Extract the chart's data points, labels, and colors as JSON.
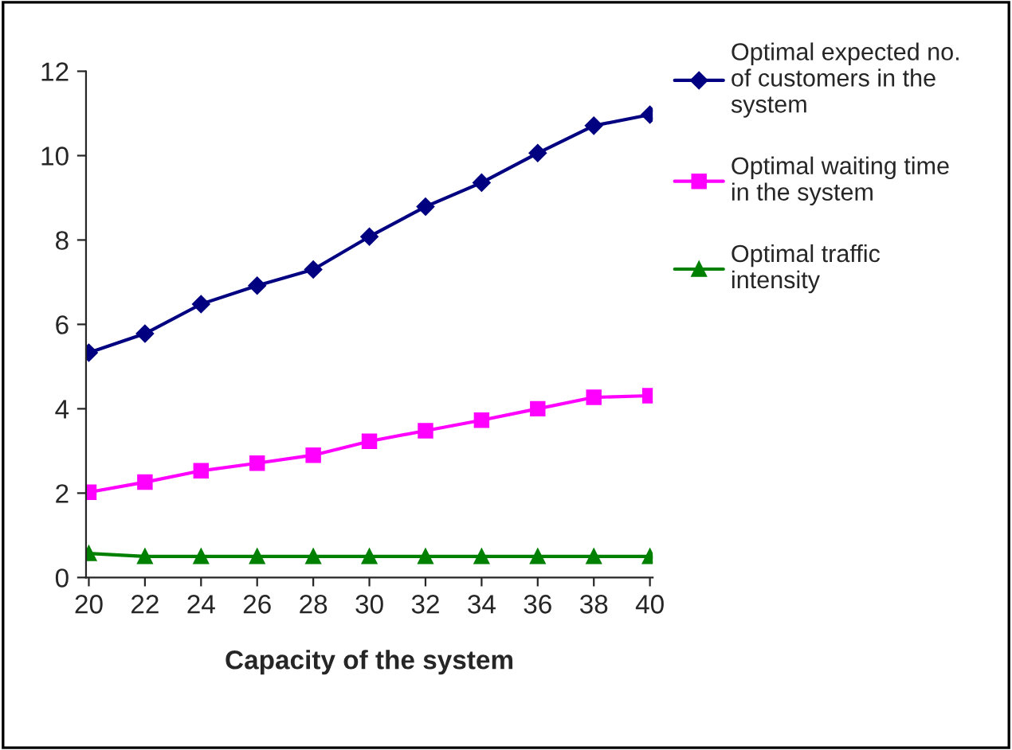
{
  "chart_data": {
    "type": "line",
    "xlabel": "Capacity of the system",
    "categories": [
      "20",
      "22",
      "24",
      "26",
      "28",
      "30",
      "32",
      "34",
      "36",
      "38",
      "40"
    ],
    "series": [
      {
        "name": "Optimal expected no. of customers in the system",
        "color": "#000080",
        "marker": "diamond",
        "values": [
          5.33,
          5.78,
          6.48,
          6.92,
          7.3,
          8.08,
          8.79,
          9.36,
          10.06,
          10.71,
          10.97
        ]
      },
      {
        "name": "Optimal waiting time in the system",
        "color": "#ff00ff",
        "marker": "square",
        "values": [
          2.02,
          2.26,
          2.53,
          2.71,
          2.9,
          3.23,
          3.48,
          3.73,
          4.0,
          4.27,
          4.31
        ]
      },
      {
        "name": "Optimal traffic intensity",
        "color": "#008000",
        "marker": "triangle",
        "values": [
          0.57,
          0.5,
          0.5,
          0.5,
          0.5,
          0.5,
          0.5,
          0.5,
          0.5,
          0.5,
          0.5
        ]
      }
    ],
    "ylim": [
      0,
      12
    ],
    "yticks": [
      0,
      2,
      4,
      6,
      8,
      10,
      12
    ],
    "grid": false,
    "legend": "right",
    "line_style": "solid"
  }
}
